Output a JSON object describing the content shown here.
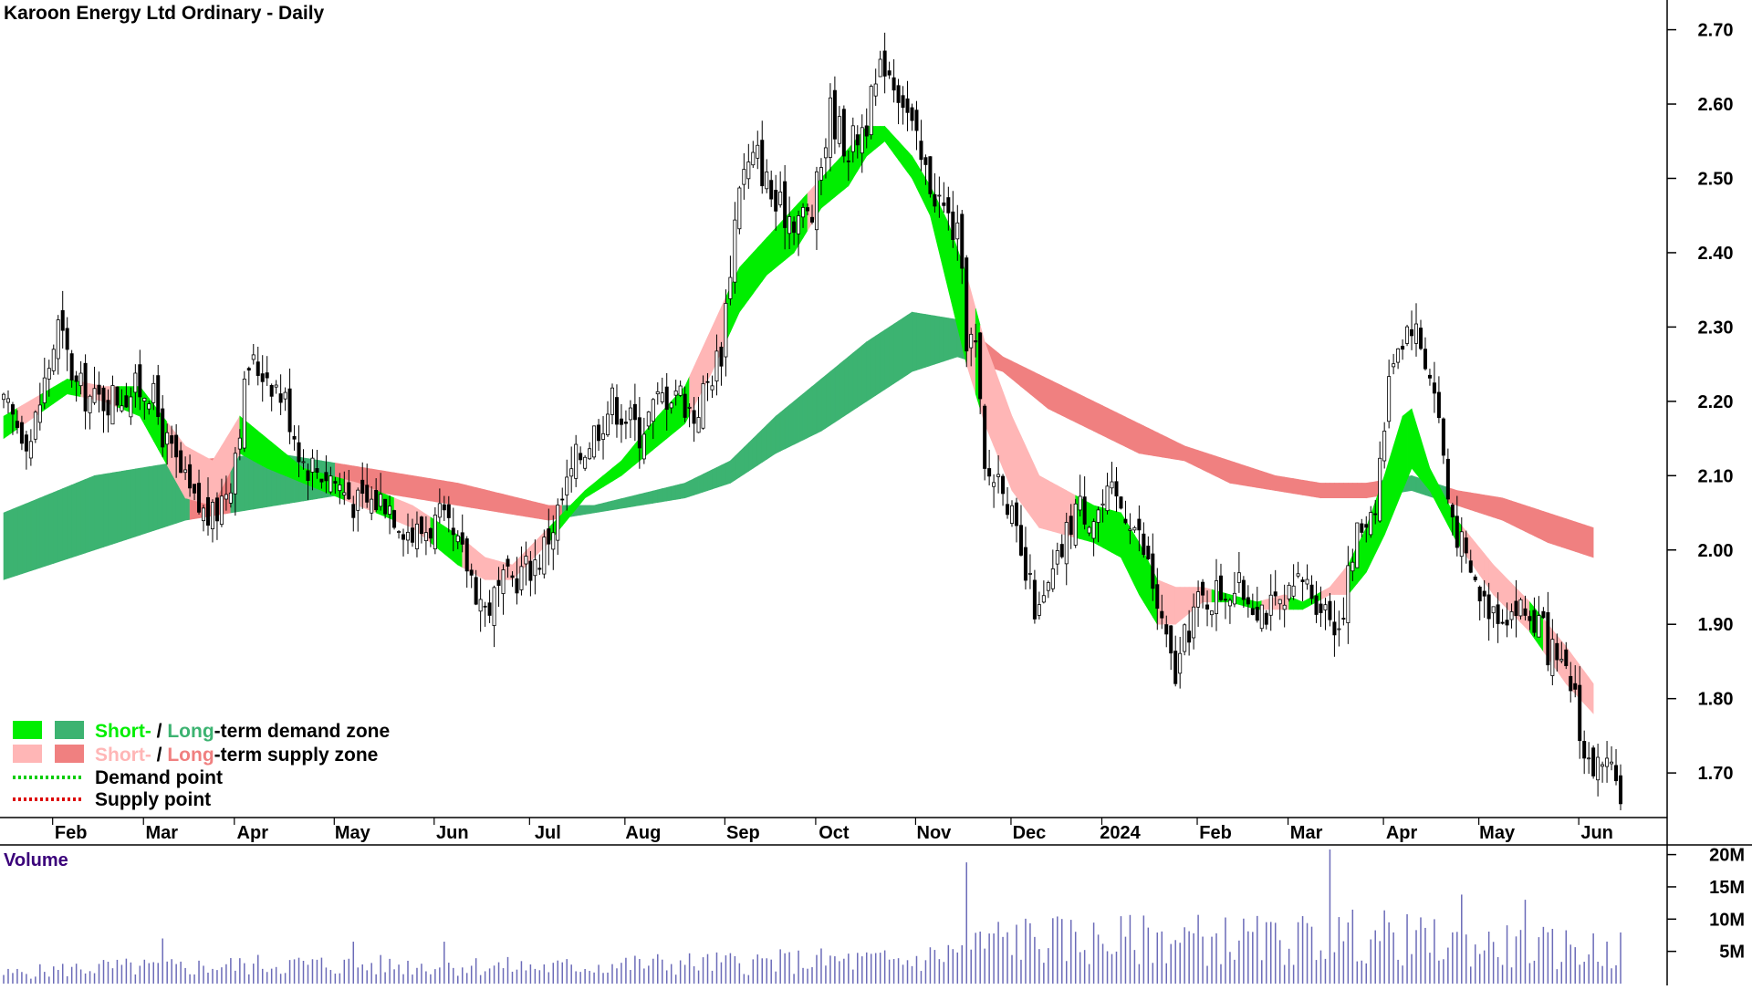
{
  "chart_data": {
    "type": "candlestick",
    "title": "Karoon Energy Ltd Ordinary - Daily",
    "y_ticks": [
      "2.70",
      "2.60",
      "2.50",
      "2.40",
      "2.30",
      "2.20",
      "2.10",
      "2.00",
      "1.90",
      "1.80",
      "1.70"
    ],
    "ylim": [
      1.64,
      2.74
    ],
    "x_labels": [
      "Feb",
      "Mar",
      "Apr",
      "May",
      "Jun",
      "Jul",
      "Aug",
      "Sep",
      "Oct",
      "Nov",
      "Dec",
      "2024",
      "Feb",
      "Mar",
      "Apr",
      "May",
      "Jun"
    ],
    "x_index": [
      14,
      34,
      54,
      76,
      98,
      119,
      140,
      162,
      182,
      204,
      225,
      245,
      266,
      286,
      307,
      328,
      350
    ],
    "n_days": 357,
    "series": {
      "close": [
        [
          0,
          2.19
        ],
        [
          6,
          2.15
        ],
        [
          12,
          2.3
        ],
        [
          16,
          2.22
        ],
        [
          20,
          2.2
        ],
        [
          26,
          2.21
        ],
        [
          32,
          2.22
        ],
        [
          36,
          2.14
        ],
        [
          42,
          2.06
        ],
        [
          46,
          2.04
        ],
        [
          50,
          2.1
        ],
        [
          54,
          2.25
        ],
        [
          58,
          2.24
        ],
        [
          62,
          2.2
        ],
        [
          66,
          2.12
        ],
        [
          72,
          2.1
        ],
        [
          78,
          2.06
        ],
        [
          84,
          2.07
        ],
        [
          90,
          2.02
        ],
        [
          96,
          2.04
        ],
        [
          102,
          1.98
        ],
        [
          106,
          1.92
        ],
        [
          110,
          1.95
        ],
        [
          114,
          1.97
        ],
        [
          118,
          1.99
        ],
        [
          122,
          2.05
        ],
        [
          126,
          2.12
        ],
        [
          130,
          2.16
        ],
        [
          134,
          2.2
        ],
        [
          140,
          2.16
        ],
        [
          144,
          2.2
        ],
        [
          148,
          2.22
        ],
        [
          152,
          2.18
        ],
        [
          158,
          2.27
        ],
        [
          162,
          2.5
        ],
        [
          166,
          2.53
        ],
        [
          170,
          2.46
        ],
        [
          174,
          2.45
        ],
        [
          178,
          2.45
        ],
        [
          182,
          2.59
        ],
        [
          186,
          2.54
        ],
        [
          190,
          2.58
        ],
        [
          194,
          2.66
        ],
        [
          198,
          2.61
        ],
        [
          202,
          2.52
        ],
        [
          206,
          2.47
        ],
        [
          210,
          2.42
        ],
        [
          212,
          2.29
        ],
        [
          214,
          2.27
        ],
        [
          216,
          2.1
        ],
        [
          220,
          2.1
        ],
        [
          224,
          1.98
        ],
        [
          228,
          1.91
        ],
        [
          232,
          1.98
        ],
        [
          236,
          2.06
        ],
        [
          240,
          2.05
        ],
        [
          244,
          2.07
        ],
        [
          248,
          2.05
        ],
        [
          252,
          1.98
        ],
        [
          256,
          1.87
        ],
        [
          258,
          1.83
        ],
        [
          262,
          1.92
        ],
        [
          266,
          1.94
        ],
        [
          270,
          1.95
        ],
        [
          274,
          1.94
        ],
        [
          278,
          1.92
        ],
        [
          282,
          1.92
        ],
        [
          286,
          1.96
        ],
        [
          290,
          1.93
        ],
        [
          294,
          1.9
        ],
        [
          298,
          2.02
        ],
        [
          302,
          2.07
        ],
        [
          306,
          2.27
        ],
        [
          310,
          2.31
        ],
        [
          314,
          2.24
        ],
        [
          316,
          2.18
        ],
        [
          318,
          2.07
        ],
        [
          322,
          1.98
        ],
        [
          326,
          1.93
        ],
        [
          330,
          1.92
        ],
        [
          334,
          1.92
        ],
        [
          338,
          1.9
        ],
        [
          342,
          1.84
        ],
        [
          346,
          1.81
        ],
        [
          348,
          1.72
        ],
        [
          352,
          1.7
        ],
        [
          356,
          1.68
        ]
      ],
      "volume": [
        [
          0,
          1.5
        ],
        [
          20,
          2.5
        ],
        [
          40,
          2.5
        ],
        [
          60,
          3.0
        ],
        [
          80,
          2.8
        ],
        [
          100,
          2.8
        ],
        [
          120,
          2.5
        ],
        [
          140,
          3.0
        ],
        [
          160,
          3.2
        ],
        [
          180,
          3.5
        ],
        [
          200,
          3.5
        ],
        [
          210,
          5.0
        ],
        [
          220,
          7.0
        ],
        [
          240,
          6.5
        ],
        [
          260,
          7.0
        ],
        [
          280,
          6.5
        ],
        [
          300,
          7.5
        ],
        [
          320,
          6.0
        ],
        [
          340,
          5.5
        ],
        [
          356,
          5.0
        ]
      ],
      "volume_spikes": [
        [
          35,
          7
        ],
        [
          77,
          6.5
        ],
        [
          97,
          6.5
        ],
        [
          212,
          18.8
        ],
        [
          292,
          20.8
        ],
        [
          321,
          13.8
        ],
        [
          335,
          13.0
        ]
      ],
      "short_band": [
        [
          0,
          2.18,
          2.15
        ],
        [
          14,
          2.23,
          2.21
        ],
        [
          22,
          2.22,
          2.2
        ],
        [
          30,
          2.22,
          2.18
        ],
        [
          40,
          2.14,
          2.07
        ],
        [
          46,
          2.12,
          2.06
        ],
        [
          52,
          2.18,
          2.13
        ],
        [
          58,
          2.15,
          2.11
        ],
        [
          66,
          2.11,
          2.09
        ],
        [
          78,
          2.09,
          2.06
        ],
        [
          90,
          2.06,
          2.03
        ],
        [
          100,
          2.02,
          1.98
        ],
        [
          106,
          1.99,
          1.96
        ],
        [
          112,
          1.98,
          1.96
        ],
        [
          120,
          2.03,
          2.01
        ],
        [
          128,
          2.08,
          2.07
        ],
        [
          136,
          2.12,
          2.1
        ],
        [
          144,
          2.18,
          2.14
        ],
        [
          150,
          2.22,
          2.17
        ],
        [
          156,
          2.3,
          2.24
        ],
        [
          162,
          2.38,
          2.32
        ],
        [
          168,
          2.42,
          2.37
        ],
        [
          174,
          2.46,
          2.4
        ],
        [
          180,
          2.5,
          2.46
        ],
        [
          186,
          2.54,
          2.49
        ],
        [
          190,
          2.57,
          2.53
        ],
        [
          194,
          2.57,
          2.55
        ],
        [
          200,
          2.53,
          2.5
        ],
        [
          204,
          2.49,
          2.45
        ],
        [
          208,
          2.44,
          2.35
        ],
        [
          212,
          2.37,
          2.25
        ],
        [
          216,
          2.28,
          2.17
        ],
        [
          222,
          2.18,
          2.08
        ],
        [
          228,
          2.1,
          2.03
        ],
        [
          234,
          2.08,
          2.02
        ],
        [
          240,
          2.06,
          2.01
        ],
        [
          246,
          2.05,
          1.99
        ],
        [
          250,
          2.01,
          1.94
        ],
        [
          254,
          1.96,
          1.9
        ],
        [
          258,
          1.95,
          1.9
        ],
        [
          264,
          1.95,
          1.93
        ],
        [
          270,
          1.94,
          1.93
        ],
        [
          276,
          1.93,
          1.92
        ],
        [
          282,
          1.94,
          1.92
        ],
        [
          286,
          1.93,
          1.92
        ],
        [
          292,
          1.95,
          1.94
        ],
        [
          296,
          1.98,
          1.94
        ],
        [
          300,
          2.03,
          1.97
        ],
        [
          304,
          2.1,
          2.02
        ],
        [
          308,
          2.18,
          2.08
        ],
        [
          310,
          2.19,
          2.11
        ],
        [
          314,
          2.11,
          2.08
        ],
        [
          320,
          2.04,
          2.01
        ],
        [
          328,
          1.98,
          1.94
        ],
        [
          336,
          1.93,
          1.89
        ],
        [
          344,
          1.87,
          1.82
        ],
        [
          350,
          1.82,
          1.78
        ]
      ],
      "long_band": [
        [
          0,
          2.05,
          1.96
        ],
        [
          20,
          2.1,
          2.0
        ],
        [
          40,
          2.12,
          2.04
        ],
        [
          60,
          2.13,
          2.06
        ],
        [
          80,
          2.11,
          2.08
        ],
        [
          100,
          2.09,
          2.06
        ],
        [
          120,
          2.06,
          2.04
        ],
        [
          130,
          2.06,
          2.05
        ],
        [
          150,
          2.09,
          2.07
        ],
        [
          160,
          2.12,
          2.09
        ],
        [
          170,
          2.18,
          2.13
        ],
        [
          180,
          2.23,
          2.16
        ],
        [
          190,
          2.28,
          2.2
        ],
        [
          200,
          2.32,
          2.24
        ],
        [
          210,
          2.31,
          2.26
        ],
        [
          220,
          2.26,
          2.24
        ],
        [
          230,
          2.23,
          2.19
        ],
        [
          240,
          2.2,
          2.16
        ],
        [
          250,
          2.17,
          2.13
        ],
        [
          260,
          2.14,
          2.12
        ],
        [
          270,
          2.12,
          2.09
        ],
        [
          280,
          2.1,
          2.08
        ],
        [
          290,
          2.09,
          2.07
        ],
        [
          300,
          2.09,
          2.07
        ],
        [
          310,
          2.1,
          2.08
        ],
        [
          320,
          2.08,
          2.06
        ],
        [
          330,
          2.07,
          2.04
        ],
        [
          340,
          2.05,
          2.01
        ],
        [
          350,
          2.03,
          1.99
        ]
      ]
    },
    "legend": {
      "zone_word1": "Short-",
      "zone_sep": " / ",
      "zone_word2": "Long",
      "demand_rest": "-term demand zone",
      "supply_rest": "-term supply zone",
      "demand_point": "Demand point",
      "supply_point": "Supply point"
    },
    "volume_panel": {
      "title": "Volume",
      "ticks": [
        "20M",
        "15M",
        "10M",
        "5M"
      ],
      "ylim": [
        0,
        21.5
      ]
    },
    "colors": {
      "short_demand": "#00ee00",
      "long_demand": "#3cb371",
      "short_supply": "#ffb6b6",
      "long_supply": "#f08080",
      "short_supply_over": "#ff6a1a",
      "long_supply_over": "#ff6a1a",
      "volume": "#6b6bb8",
      "demand_point": "#00cc00",
      "supply_point": "#dd0000"
    }
  }
}
